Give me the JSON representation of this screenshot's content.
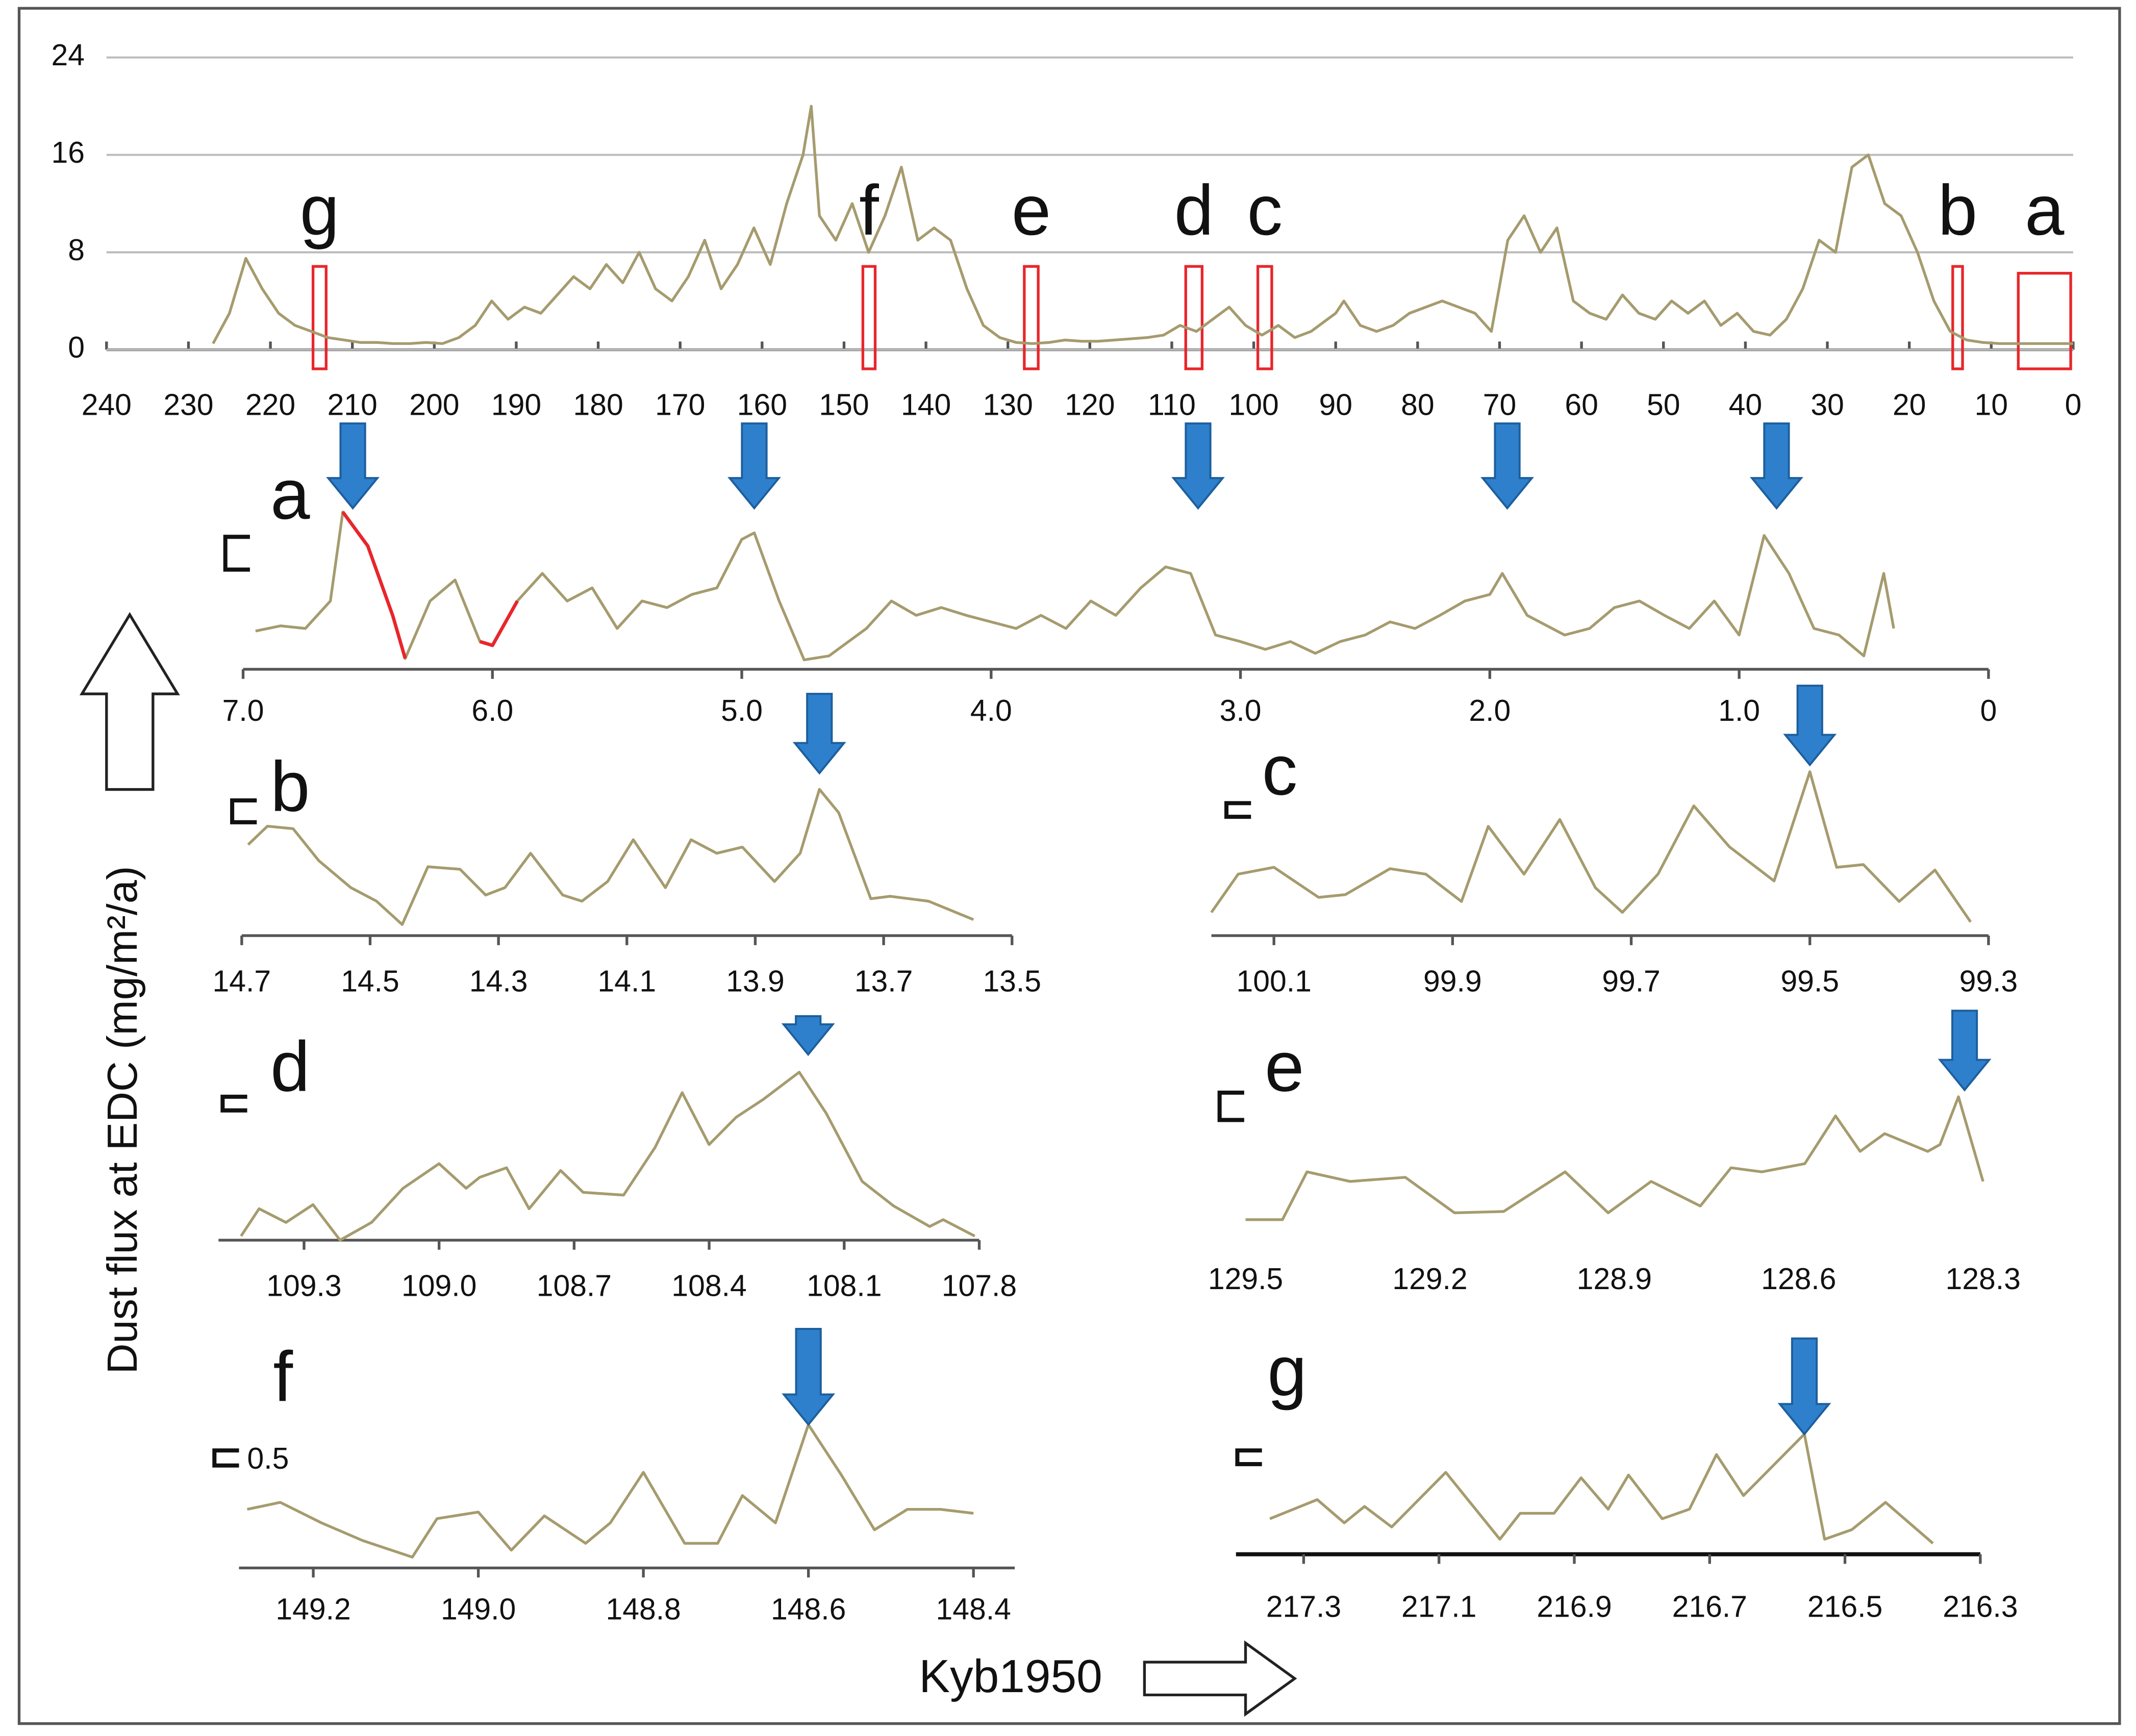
{
  "y_label": "Dust flux at EDC  (mg/m²/a)",
  "x_label": "Kyb1950",
  "chart_data": [
    {
      "type": "line",
      "xlim": [
        240,
        0
      ],
      "xticks": [
        240,
        230,
        220,
        210,
        200,
        190,
        180,
        170,
        160,
        150,
        140,
        130,
        120,
        110,
        100,
        90,
        80,
        70,
        60,
        50,
        40,
        30,
        20,
        10,
        0
      ],
      "ylim": [
        0,
        24
      ],
      "yticks": [
        0,
        8,
        16,
        24
      ],
      "grid": true,
      "x": [
        227,
        225,
        223,
        221,
        219,
        217,
        215,
        213,
        211,
        209,
        207,
        205,
        203,
        201,
        199,
        197,
        195,
        193,
        191,
        189,
        187,
        185,
        183,
        181,
        179,
        177,
        175,
        173,
        171,
        169,
        167,
        165,
        163,
        161,
        159,
        157,
        155,
        154,
        153,
        151,
        149,
        147,
        145,
        143,
        141,
        139,
        137,
        135,
        133,
        131,
        129,
        127,
        125,
        123,
        121,
        119,
        117,
        115,
        113,
        111,
        109,
        107,
        105,
        103,
        101,
        99,
        97,
        95,
        93,
        91,
        90,
        89,
        87,
        85,
        83,
        81,
        79,
        77,
        75,
        73,
        71,
        69,
        67,
        65,
        63,
        61,
        59,
        57,
        55,
        53,
        51,
        49,
        47,
        45,
        43,
        41,
        39,
        37,
        35,
        33,
        31,
        29,
        27,
        25,
        23,
        21,
        19,
        17,
        15,
        13,
        11,
        9,
        7,
        5,
        3,
        1,
        0
      ],
      "series": [
        {
          "color": "#a59b6e",
          "values": [
            0.5,
            3,
            7.5,
            5,
            3,
            2,
            1.5,
            1,
            0.8,
            0.6,
            0.6,
            0.5,
            0.5,
            0.6,
            0.5,
            1,
            2,
            4,
            2.5,
            3.5,
            3,
            4.5,
            6,
            5,
            7,
            5.5,
            8,
            5,
            4,
            6,
            9,
            5,
            7,
            10,
            7,
            12,
            16,
            20,
            11,
            9,
            12,
            8,
            11,
            15,
            9,
            10,
            9,
            5,
            2,
            1,
            0.6,
            0.5,
            0.6,
            0.8,
            0.7,
            0.7,
            0.8,
            0.9,
            1,
            1.2,
            2,
            1.5,
            2.5,
            3.5,
            2,
            1.2,
            2,
            1,
            1.5,
            2.5,
            3,
            4,
            2,
            1.5,
            2,
            3,
            3.5,
            4,
            3.5,
            3,
            1.5,
            9,
            11,
            8,
            10,
            4,
            3,
            2.5,
            4.5,
            3,
            2.5,
            4,
            3,
            4,
            2,
            3,
            1.5,
            1.2,
            2.5,
            5,
            9,
            8,
            15,
            16,
            12,
            11,
            8,
            4,
            1.5,
            0.8,
            0.6,
            0.5,
            0.5,
            0.5,
            0.5,
            0.5,
            0.5
          ]
        }
      ],
      "boxes": [
        {
          "label": "g",
          "x": [
            214.8,
            213.2
          ]
        },
        {
          "label": "f",
          "x": [
            147.7,
            146.2
          ]
        },
        {
          "label": "e",
          "x": [
            128,
            126.3
          ]
        },
        {
          "label": "d",
          "x": [
            108.3,
            106.3
          ]
        },
        {
          "label": "c",
          "x": [
            99.5,
            97.8
          ]
        },
        {
          "label": "b",
          "x": [
            14.7,
            13.5
          ]
        },
        {
          "label": "a",
          "x": [
            6.7,
            0.3
          ]
        }
      ]
    },
    {
      "type": "line",
      "label": "a",
      "xlim": [
        7,
        0
      ],
      "xticks": [
        {
          "value": 7,
          "label": "7.0"
        },
        {
          "value": 6,
          "label": "6.0"
        },
        {
          "value": 5,
          "label": "5.0"
        },
        {
          "value": 4,
          "label": "4.0"
        },
        {
          "value": 3,
          "label": "3.0"
        },
        {
          "value": 2,
          "label": "2.0"
        },
        {
          "value": 1,
          "label": "1.0"
        },
        0
      ],
      "ylim": [
        0,
        1.2
      ],
      "x": [
        6.95,
        6.85,
        6.75,
        6.65,
        6.6,
        6.5,
        6.4,
        6.35,
        6.25,
        6.15,
        6.05,
        6.0,
        5.9,
        5.8,
        5.7,
        5.6,
        5.5,
        5.4,
        5.3,
        5.2,
        5.1,
        5.0,
        4.95,
        4.85,
        4.75,
        4.65,
        4.5,
        4.4,
        4.3,
        4.2,
        4.1,
        4.0,
        3.9,
        3.8,
        3.7,
        3.6,
        3.5,
        3.4,
        3.3,
        3.2,
        3.1,
        3.0,
        2.9,
        2.8,
        2.7,
        2.6,
        2.5,
        2.4,
        2.3,
        2.2,
        2.1,
        2.0,
        1.95,
        1.85,
        1.7,
        1.6,
        1.5,
        1.4,
        1.3,
        1.2,
        1.1,
        1.0,
        0.9,
        0.8,
        0.7,
        0.6,
        0.5,
        0.42,
        0.38
      ],
      "series": [
        {
          "color": "#a59b6e",
          "values": [
            0.24,
            0.28,
            0.26,
            0.47,
            1.15,
            0.89,
            0.36,
            0.03,
            0.47,
            0.63,
            0.16,
            0.13,
            0.47,
            0.68,
            0.47,
            0.57,
            0.26,
            0.47,
            0.42,
            0.52,
            0.57,
            0.94,
            0.99,
            0.47,
            0.02,
            0.05,
            0.26,
            0.47,
            0.36,
            0.42,
            0.36,
            0.31,
            0.26,
            0.36,
            0.26,
            0.47,
            0.36,
            0.57,
            0.73,
            0.68,
            0.21,
            0.16,
            0.1,
            0.16,
            0.07,
            0.16,
            0.21,
            0.31,
            0.26,
            0.36,
            0.47,
            0.52,
            0.68,
            0.36,
            0.21,
            0.26,
            0.42,
            0.47,
            0.36,
            0.26,
            0.47,
            0.21,
            0.97,
            0.68,
            0.26,
            0.21,
            0.05,
            0.68,
            0.26
          ]
        },
        {
          "color": "#e8262b",
          "values": [
            null,
            null,
            null,
            null,
            1.15,
            0.89,
            0.36,
            0.03,
            null,
            null,
            0.16,
            0.13,
            0.47,
            null,
            null,
            null,
            null,
            null,
            null,
            null,
            null,
            null,
            null,
            null,
            null,
            null,
            null,
            null,
            null,
            null,
            null,
            null,
            null,
            null,
            null,
            null,
            null,
            null,
            null,
            null,
            null,
            null,
            null,
            null,
            null,
            null,
            null,
            null,
            null,
            null,
            null,
            null,
            null,
            null,
            null,
            null,
            null,
            null,
            null,
            null,
            null,
            null,
            null,
            null,
            null,
            null,
            null,
            null,
            null
          ]
        }
      ],
      "arrows": [
        6.56,
        4.95,
        3.17,
        1.93,
        0.85
      ]
    },
    {
      "type": "line",
      "label": "b",
      "xlim": [
        14.7,
        13.5
      ],
      "xticks": [
        14.7,
        14.5,
        14.3,
        14.1,
        13.9,
        13.7,
        13.5
      ],
      "ylim": [
        0,
        1.2
      ],
      "x": [
        14.69,
        14.66,
        14.62,
        14.58,
        14.53,
        14.49,
        14.45,
        14.41,
        14.36,
        14.32,
        14.29,
        14.25,
        14.2,
        14.17,
        14.13,
        14.09,
        14.04,
        14.0,
        13.96,
        13.92,
        13.87,
        13.83,
        13.8,
        13.77,
        13.72,
        13.69,
        13.63,
        13.56
      ],
      "series": [
        {
          "color": "#a59b6e",
          "values": [
            0.74,
            0.89,
            0.87,
            0.61,
            0.39,
            0.28,
            0.09,
            0.56,
            0.54,
            0.33,
            0.39,
            0.67,
            0.33,
            0.28,
            0.44,
            0.78,
            0.39,
            0.78,
            0.67,
            0.72,
            0.44,
            0.67,
            1.19,
            1.0,
            0.3,
            0.32,
            0.28,
            0.13
          ]
        }
      ],
      "arrows": [
        13.8
      ]
    },
    {
      "type": "line",
      "label": "c",
      "xlim": [
        100.17,
        99.3
      ],
      "xticks": [
        100.1,
        99.9,
        99.7,
        99.5,
        99.3
      ],
      "ylim": [
        0,
        1.25
      ],
      "x": [
        100.17,
        100.14,
        100.1,
        100.05,
        100.02,
        99.97,
        99.93,
        99.89,
        99.86,
        99.82,
        99.78,
        99.74,
        99.71,
        99.67,
        99.63,
        99.59,
        99.54,
        99.5,
        99.47,
        99.44,
        99.4,
        99.36,
        99.32
      ],
      "series": [
        {
          "color": "#a59b6e",
          "values": [
            0.17,
            0.45,
            0.5,
            0.28,
            0.3,
            0.49,
            0.45,
            0.25,
            0.8,
            0.45,
            0.85,
            0.35,
            0.17,
            0.45,
            0.95,
            0.65,
            0.4,
            1.2,
            0.5,
            0.52,
            0.25,
            0.48,
            0.1
          ]
        }
      ],
      "arrows": [
        99.5
      ]
    },
    {
      "type": "line",
      "label": "d",
      "xlim": [
        109.49,
        107.8
      ],
      "xticks": [
        109.3,
        {
          "value": 109,
          "label": "109.0"
        },
        108.7,
        108.4,
        108.1,
        107.8
      ],
      "ylim": [
        0,
        1.25
      ],
      "x": [
        109.44,
        109.4,
        109.34,
        109.28,
        109.22,
        109.15,
        109.08,
        109.0,
        108.94,
        108.91,
        108.85,
        108.8,
        108.73,
        108.68,
        108.59,
        108.52,
        108.46,
        108.4,
        108.34,
        108.28,
        108.2,
        108.14,
        108.06,
        107.99,
        107.91,
        107.88,
        107.81
      ],
      "series": [
        {
          "color": "#a59b6e",
          "values": [
            0.03,
            0.23,
            0.13,
            0.26,
            0,
            0.13,
            0.38,
            0.56,
            0.38,
            0.46,
            0.53,
            0.23,
            0.51,
            0.35,
            0.33,
            0.68,
            1.08,
            0.7,
            0.9,
            1.03,
            1.23,
            0.93,
            0.43,
            0.25,
            0.1,
            0.15,
            0.03
          ]
        }
      ],
      "arrows": [
        108.18
      ]
    },
    {
      "type": "line",
      "label": "e",
      "xlim": [
        129.5,
        128.3
      ],
      "xticks": [
        129.5,
        129.2,
        128.9,
        128.6,
        128.3
      ],
      "ylim": [
        0,
        1
      ],
      "axis_line": false,
      "x": [
        129.5,
        129.44,
        129.4,
        129.33,
        129.24,
        129.16,
        129.08,
        128.98,
        128.91,
        128.84,
        128.76,
        128.71,
        128.66,
        128.59,
        128.54,
        128.5,
        128.46,
        128.39,
        128.37,
        128.34,
        128.3
      ],
      "series": [
        {
          "color": "#a59b6e",
          "values": [
            0.07,
            0.07,
            0.42,
            0.35,
            0.38,
            0.12,
            0.13,
            0.42,
            0.12,
            0.35,
            0.17,
            0.45,
            0.42,
            0.48,
            0.83,
            0.57,
            0.7,
            0.57,
            0.62,
            0.97,
            0.35
          ]
        }
      ],
      "arrows": [
        128.33
      ]
    },
    {
      "type": "line",
      "label": "f",
      "xlim": [
        149.29,
        148.35
      ],
      "xticks": [
        149.2,
        {
          "value": 149,
          "label": "149.0"
        },
        148.8,
        148.6,
        148.4
      ],
      "ylim": [
        0,
        5
      ],
      "scale_bar": 0.5,
      "x": [
        149.28,
        149.24,
        149.19,
        149.14,
        149.08,
        149.05,
        149.0,
        148.96,
        148.92,
        148.87,
        148.84,
        148.8,
        148.75,
        148.71,
        148.68,
        148.64,
        148.6,
        148.56,
        148.52,
        148.48,
        148.44,
        148.4
      ],
      "series": [
        {
          "color": "#a59b6e",
          "values": [
            1.95,
            2.18,
            1.5,
            0.91,
            0.36,
            1.64,
            1.86,
            0.59,
            1.73,
            0.82,
            1.5,
            3.18,
            0.82,
            0.82,
            2.41,
            1.5,
            4.77,
            3.09,
            1.27,
            1.95,
            1.95,
            1.82
          ]
        }
      ],
      "arrows": [
        148.6
      ]
    },
    {
      "type": "line",
      "label": "g",
      "xlim": [
        217.4,
        216.3
      ],
      "xticks": [
        217.3,
        217.1,
        216.9,
        216.7,
        216.5,
        216.3
      ],
      "ylim": [
        0,
        1
      ],
      "x": [
        217.35,
        217.28,
        217.24,
        217.21,
        217.17,
        217.09,
        217.01,
        216.98,
        216.93,
        216.89,
        216.85,
        216.82,
        216.77,
        216.73,
        216.69,
        216.65,
        216.56,
        216.53,
        216.49,
        216.44,
        216.37
      ],
      "series": [
        {
          "color": "#a59b6e",
          "values": [
            0.26,
            0.4,
            0.23,
            0.35,
            0.2,
            0.6,
            0.11,
            0.3,
            0.3,
            0.56,
            0.33,
            0.58,
            0.26,
            0.33,
            0.73,
            0.43,
            0.88,
            0.11,
            0.18,
            0.38,
            0.08
          ]
        }
      ],
      "arrows": [
        216.56
      ]
    }
  ]
}
